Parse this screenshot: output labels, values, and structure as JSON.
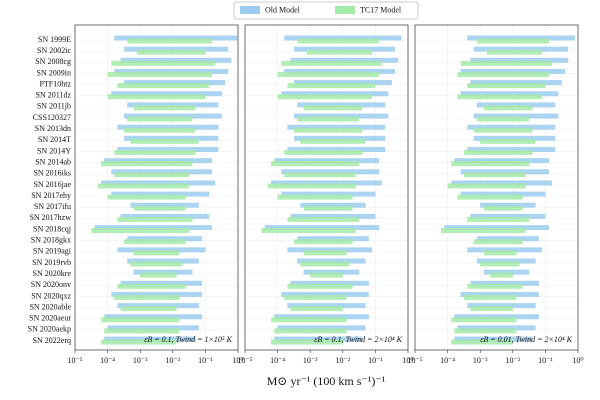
{
  "chart_data": [
    {
      "type": "range-bar",
      "log_x": true,
      "grid": true,
      "legend": "top",
      "xlabel": "M⊙ yr⁻¹ (100 km s⁻¹)⁻¹",
      "annotation": "εB = 0.1, Twind = 1×10⁵ K",
      "categories": [
        "SN 1999E",
        "SN 2002ic",
        "SN 2008cg",
        "SN 2009in",
        "PTF10htz",
        "SN 2011dz",
        "SN 2011jb",
        "CSS120327",
        "SN 2013dn",
        "SN 2014T",
        "SN 2014Y",
        "SN 2014ab",
        "SN 2016iks",
        "SN 2016jae",
        "SN 2017ehy",
        "SN 2017ifu",
        "SN 2017hzw",
        "SN 2018cqj",
        "SN 2018gkx",
        "SN 2019agi",
        "SN 2019rvb",
        "SN 2020kre",
        "SN 2020onv",
        "SN 2020qxz",
        "SN 2020able",
        "SN 2020aeur",
        "SN 2020aekp",
        "SN 2022erq"
      ],
      "xlim": [
        1e-05,
        1
      ],
      "xticks": [
        {
          "value": 1e-05,
          "label": "10⁻⁵"
        },
        {
          "value": 0.0001,
          "label": "10⁻⁴"
        },
        {
          "value": 0.001,
          "label": "10⁻³"
        },
        {
          "value": 0.01,
          "label": "10⁻²"
        },
        {
          "value": 0.1,
          "label": "10⁻¹"
        },
        {
          "value": 1,
          "label": "10⁰"
        }
      ],
      "series": [
        {
          "name": "Old Model",
          "color": "#9ccbf0",
          "values": [
            [
              0.00016,
              0.95
            ],
            [
              0.00032,
              0.5
            ],
            [
              0.00025,
              0.63
            ],
            [
              0.00016,
              0.5
            ],
            [
              0.00032,
              0.4
            ],
            [
              0.00013,
              0.32
            ],
            [
              0.0004,
              0.25
            ],
            [
              0.00032,
              0.32
            ],
            [
              0.0002,
              0.25
            ],
            [
              0.00032,
              0.25
            ],
            [
              0.0002,
              0.25
            ],
            [
              7.9e-05,
              0.16
            ],
            [
              0.00013,
              0.16
            ],
            [
              6.3e-05,
              0.2
            ],
            [
              0.00013,
              0.13
            ],
            [
              0.0005,
              0.063
            ],
            [
              0.00025,
              0.13
            ],
            [
              4e-05,
              0.16
            ],
            [
              0.0004,
              0.079
            ],
            [
              0.0002,
              0.1
            ],
            [
              0.0004,
              0.063
            ],
            [
              0.00063,
              0.04
            ],
            [
              0.00025,
              0.079
            ],
            [
              0.00013,
              0.079
            ],
            [
              0.0002,
              0.063
            ],
            [
              7.9e-05,
              0.079
            ],
            [
              0.0001,
              0.063
            ],
            [
              7.9e-05,
              0.05
            ]
          ]
        },
        {
          "name": "TC17 Model",
          "color": "#a4eaa8",
          "values": [
            [
              0.0004,
              0.16
            ],
            [
              0.00079,
              0.1
            ],
            [
              0.00013,
              0.2
            ],
            [
              0.0001,
              0.16
            ],
            [
              0.0002,
              0.13
            ],
            [
              0.0001,
              0.1
            ],
            [
              0.00063,
              0.05
            ],
            [
              0.0004,
              0.04
            ],
            [
              0.00032,
              0.05
            ],
            [
              0.0005,
              0.063
            ],
            [
              0.00016,
              0.05
            ],
            [
              6.3e-05,
              0.04
            ],
            [
              0.00016,
              0.032
            ],
            [
              5e-05,
              0.032
            ],
            [
              0.0001,
              0.025
            ],
            [
              0.00063,
              0.025
            ],
            [
              0.0002,
              0.04
            ],
            [
              3.2e-05,
              0.032
            ],
            [
              0.00032,
              0.025
            ],
            [
              0.00063,
              0.016
            ],
            [
              0.0005,
              0.02
            ],
            [
              0.001,
              0.013
            ],
            [
              0.0002,
              0.025
            ],
            [
              0.00016,
              0.016
            ],
            [
              0.00025,
              0.013
            ],
            [
              6.3e-05,
              0.016
            ],
            [
              7.9e-05,
              0.016
            ],
            [
              6.3e-05,
              0.013
            ]
          ]
        }
      ]
    },
    {
      "type": "range-bar",
      "log_x": true,
      "grid": true,
      "annotation": "εB = 0.1, Twind = 2×10⁴ K",
      "xlim": [
        1e-05,
        1
      ],
      "xticks": [
        {
          "value": 1e-05,
          "label": "10⁻⁵"
        },
        {
          "value": 0.0001,
          "label": "10⁻⁴"
        },
        {
          "value": 0.001,
          "label": "10⁻³"
        },
        {
          "value": 0.01,
          "label": "10⁻²"
        },
        {
          "value": 0.1,
          "label": "10⁻¹"
        },
        {
          "value": 1,
          "label": "10⁰"
        }
      ],
      "series": [
        {
          "name": "Old Model",
          "color": "#9ccbf0",
          "values": [
            [
              0.00016,
              0.63
            ],
            [
              0.00032,
              0.4
            ],
            [
              0.00025,
              0.5
            ],
            [
              0.00016,
              0.4
            ],
            [
              0.00032,
              0.32
            ],
            [
              0.00013,
              0.25
            ],
            [
              0.0004,
              0.2
            ],
            [
              0.00032,
              0.25
            ],
            [
              0.0002,
              0.2
            ],
            [
              0.00032,
              0.2
            ],
            [
              0.0002,
              0.2
            ],
            [
              7.9e-05,
              0.13
            ],
            [
              0.00013,
              0.13
            ],
            [
              6.3e-05,
              0.16
            ],
            [
              0.00013,
              0.1
            ],
            [
              0.0005,
              0.05
            ],
            [
              0.00025,
              0.1
            ],
            [
              4e-05,
              0.13
            ],
            [
              0.0004,
              0.063
            ],
            [
              0.0002,
              0.079
            ],
            [
              0.0004,
              0.05
            ],
            [
              0.00063,
              0.032
            ],
            [
              0.00025,
              0.063
            ],
            [
              0.00013,
              0.063
            ],
            [
              0.0002,
              0.05
            ],
            [
              7.9e-05,
              0.063
            ],
            [
              0.0001,
              0.05
            ],
            [
              7.9e-05,
              0.04
            ]
          ]
        },
        {
          "name": "TC17 Model",
          "color": "#a4eaa8",
          "values": [
            [
              0.0004,
              0.13
            ],
            [
              0.00079,
              0.079
            ],
            [
              0.00013,
              0.16
            ],
            [
              0.0001,
              0.13
            ],
            [
              0.0002,
              0.1
            ],
            [
              0.0001,
              0.079
            ],
            [
              0.00063,
              0.04
            ],
            [
              0.0004,
              0.032
            ],
            [
              0.00032,
              0.04
            ],
            [
              0.0005,
              0.05
            ],
            [
              0.00016,
              0.04
            ],
            [
              6.3e-05,
              0.032
            ],
            [
              0.00016,
              0.025
            ],
            [
              5e-05,
              0.025
            ],
            [
              0.0001,
              0.02
            ],
            [
              0.00063,
              0.02
            ],
            [
              0.0002,
              0.032
            ],
            [
              3.2e-05,
              0.025
            ],
            [
              0.00032,
              0.02
            ],
            [
              0.00063,
              0.013
            ],
            [
              0.0005,
              0.016
            ],
            [
              0.001,
              0.01
            ],
            [
              0.0002,
              0.02
            ],
            [
              0.00016,
              0.013
            ],
            [
              0.00025,
              0.01
            ],
            [
              6.3e-05,
              0.013
            ],
            [
              7.9e-05,
              0.013
            ],
            [
              6.3e-05,
              0.01
            ]
          ]
        }
      ]
    },
    {
      "type": "range-bar",
      "log_x": true,
      "grid": true,
      "annotation": "εB = 0.01, Twind = 2×10⁴ K",
      "xlim": [
        1e-05,
        1
      ],
      "xticks": [
        {
          "value": 1e-05,
          "label": "10⁻⁵"
        },
        {
          "value": 0.0001,
          "label": "10⁻⁴"
        },
        {
          "value": 0.001,
          "label": "10⁻³"
        },
        {
          "value": 0.01,
          "label": "10⁻²"
        },
        {
          "value": 0.1,
          "label": "10⁻¹"
        },
        {
          "value": 1,
          "label": "10⁰"
        }
      ],
      "series": [
        {
          "name": "Old Model",
          "color": "#9ccbf0",
          "values": [
            [
              0.0004,
              0.8
            ],
            [
              0.00063,
              0.5
            ],
            [
              0.0005,
              0.5
            ],
            [
              0.00025,
              0.4
            ],
            [
              0.0005,
              0.32
            ],
            [
              0.00025,
              0.25
            ],
            [
              0.00079,
              0.2
            ],
            [
              0.00063,
              0.25
            ],
            [
              0.0004,
              0.2
            ],
            [
              0.00063,
              0.2
            ],
            [
              0.0004,
              0.2
            ],
            [
              0.00016,
              0.13
            ],
            [
              0.00025,
              0.13
            ],
            [
              0.00013,
              0.16
            ],
            [
              0.00025,
              0.1
            ],
            [
              0.001,
              0.05
            ],
            [
              0.0005,
              0.1
            ],
            [
              7.9e-05,
              0.13
            ],
            [
              0.00079,
              0.063
            ],
            [
              0.0004,
              0.079
            ],
            [
              0.00079,
              0.05
            ],
            [
              0.0013,
              0.032
            ],
            [
              0.0005,
              0.063
            ],
            [
              0.00025,
              0.063
            ],
            [
              0.0004,
              0.05
            ],
            [
              0.00016,
              0.063
            ],
            [
              0.0002,
              0.05
            ],
            [
              0.00016,
              0.04
            ]
          ]
        },
        {
          "name": "TC17 Model",
          "color": "#a4eaa8",
          "values": [
            [
              0.00079,
              0.13
            ],
            [
              0.0016,
              0.079
            ],
            [
              0.00025,
              0.16
            ],
            [
              0.0002,
              0.13
            ],
            [
              0.0004,
              0.1
            ],
            [
              0.0002,
              0.079
            ],
            [
              0.0013,
              0.04
            ],
            [
              0.00079,
              0.032
            ],
            [
              0.00063,
              0.04
            ],
            [
              0.001,
              0.05
            ],
            [
              0.00032,
              0.04
            ],
            [
              0.00013,
              0.032
            ],
            [
              0.00032,
              0.025
            ],
            [
              0.0001,
              0.025
            ],
            [
              0.0002,
              0.02
            ],
            [
              0.0013,
              0.02
            ],
            [
              0.0004,
              0.032
            ],
            [
              6.3e-05,
              0.025
            ],
            [
              0.00063,
              0.02
            ],
            [
              0.0013,
              0.013
            ],
            [
              0.001,
              0.016
            ],
            [
              0.002,
              0.01
            ],
            [
              0.0004,
              0.02
            ],
            [
              0.00032,
              0.013
            ],
            [
              0.0005,
              0.01
            ],
            [
              0.00013,
              0.013
            ],
            [
              0.00016,
              0.013
            ],
            [
              0.00013,
              0.01
            ]
          ]
        }
      ]
    }
  ]
}
